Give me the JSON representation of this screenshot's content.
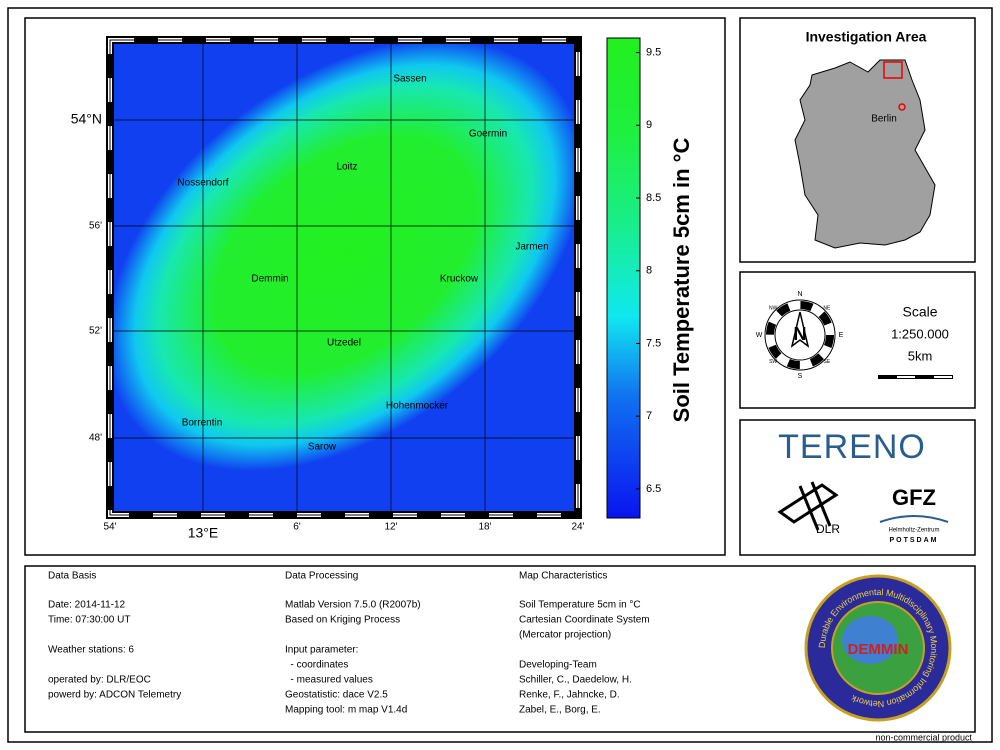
{
  "map": {
    "towns": [
      "Sassen",
      "Goermin",
      "Loitz",
      "Nossendorf",
      "Jarmen",
      "Demmin",
      "Kruckow",
      "Utzedel",
      "Hohenmocker",
      "Borrentin",
      "Sarow"
    ],
    "lat_labels": [
      "54°N",
      "56'",
      "52'",
      "48'"
    ],
    "lon_labels": [
      "54'",
      "13°E",
      "6'",
      "12'",
      "18'",
      "24'"
    ]
  },
  "colorbar": {
    "label": "Soil Temperature 5cm in °C",
    "lim": [
      6.3,
      9.6
    ],
    "ticks": [
      6.5,
      7,
      7.5,
      8,
      8.5,
      9,
      9.5
    ]
  },
  "inset": {
    "title": "Investigation Area",
    "city": "Berlin"
  },
  "compass": {
    "points": [
      "N",
      "NE",
      "E",
      "SE",
      "S",
      "SW",
      "W",
      "NW"
    ]
  },
  "scale": {
    "title": "Scale",
    "ratio": "1:250.000",
    "distance": "5km"
  },
  "logos": {
    "tereno": "TERENO",
    "dlr": "DLR",
    "gfz": "GFZ",
    "gfz_sub1": "Helmholtz-Zentrum",
    "gfz_sub2": "POTSDAM",
    "demmin": "DEMMIN",
    "demmin_ring": "Durable Environmental Multidisciplinary Monitoring Information Network"
  },
  "info": {
    "columns": [
      {
        "title": "Data Basis",
        "blocks": [
          [
            "Date: 2014-11-12",
            "Time: 07:30:00 UT"
          ],
          [
            "Weather stations: 6"
          ],
          [
            "operated by: DLR/EOC",
            "powerd by: ADCON Telemetry"
          ]
        ]
      },
      {
        "title": "Data Processing",
        "blocks": [
          [
            "Matlab Version 7.5.0 (R2007b)",
            "Based on Kriging Process"
          ],
          [
            "Input parameter:",
            "  - coordinates",
            "  - measured values",
            "Geostatistic: dace V2.5",
            "Mapping tool: m map V1.4d"
          ]
        ]
      },
      {
        "title": "Map Characteristics",
        "blocks": [
          [
            "Soil Temperature 5cm in °C",
            "Cartesian Coordinate System",
            "(Mercator projection)"
          ],
          [
            "Developing-Team",
            "Schiller, C., Daedelow, H.",
            "Renke, F., Jahncke, D.",
            "Zabel, E., Borg, E."
          ]
        ]
      }
    ]
  },
  "footer": "non-commercial product"
}
